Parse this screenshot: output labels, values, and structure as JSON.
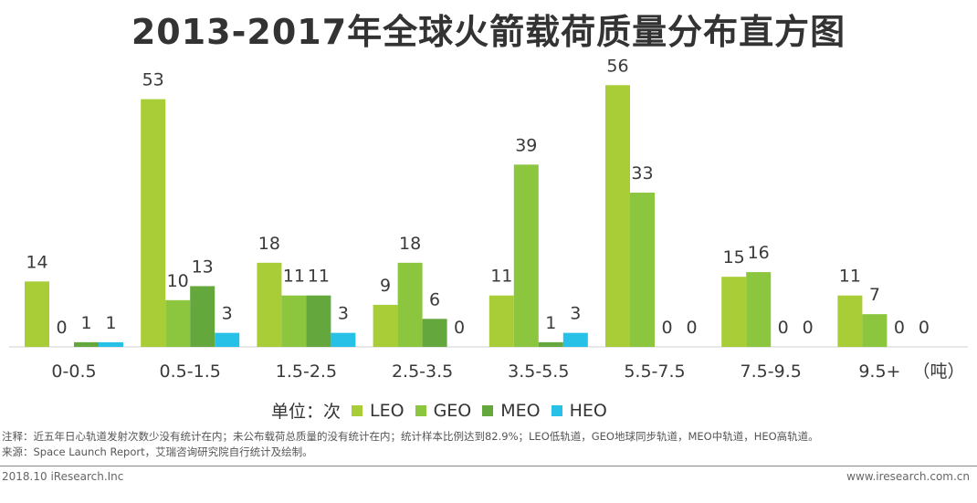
{
  "title": "2013-2017年全球火箭载荷质量分布直方图",
  "chart_data": {
    "type": "bar",
    "title": "2013-2017年全球火箭载荷质量分布直方图",
    "categories": [
      "0-0.5",
      "0.5-1.5",
      "1.5-2.5",
      "2.5-3.5",
      "3.5-5.5",
      "5.5-7.5",
      "7.5-9.5",
      "9.5+"
    ],
    "series": [
      {
        "name": "LEO",
        "color": "#a8cd37",
        "values": [
          14,
          53,
          18,
          9,
          11,
          56,
          15,
          11
        ]
      },
      {
        "name": "GEO",
        "color": "#8cc63e",
        "values": [
          0,
          10,
          11,
          18,
          39,
          33,
          16,
          7
        ]
      },
      {
        "name": "MEO",
        "color": "#64a83d",
        "values": [
          1,
          13,
          11,
          6,
          1,
          0,
          0,
          0
        ]
      },
      {
        "name": "HEO",
        "color": "#27c0e6",
        "values": [
          1,
          3,
          3,
          0,
          3,
          0,
          0,
          0
        ]
      }
    ],
    "x_unit_label": "（吨）",
    "ylim": [
      0,
      60
    ],
    "legend_prefix": "单位：次"
  },
  "notes": {
    "line1": "注释：近五年日心轨道发射次数少没有统计在内；未公布载荷总质量的没有统计在内；统计样本比例达到82.9%；LEO低轨道，GEO地球同步轨道，MEO中轨道，HEO高轨道。",
    "line2": "来源：Space Launch Report，艾瑞咨询研究院自行统计及绘制。"
  },
  "footer": {
    "left": "2018.10 iResearch.Inc",
    "right": "www.iresearch.com.cn"
  }
}
